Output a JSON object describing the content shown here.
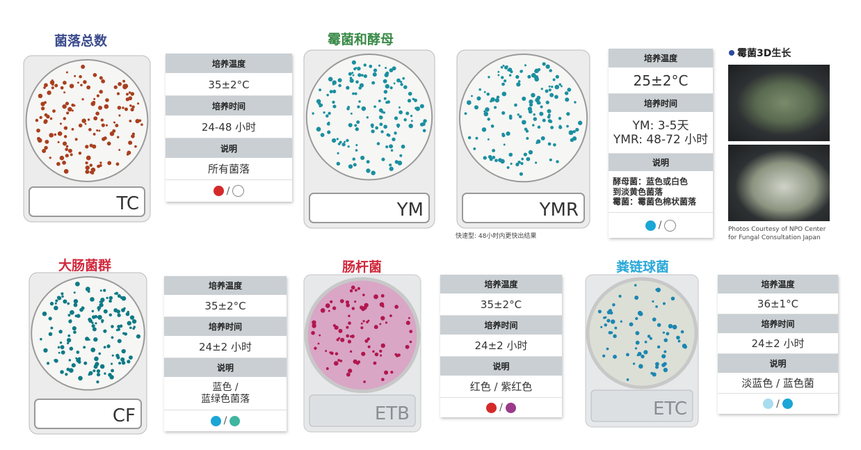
{
  "sections": {
    "tc": {
      "title": "菌落总数",
      "title_color": "#3b4b8c",
      "plate_label": "TC",
      "colony_color": "#a8401e"
    },
    "ym": {
      "title": "霉菌和酵母",
      "title_color": "#3a8a48",
      "plate_label": "YM",
      "colony_color": "#1b8fa0"
    },
    "ymr": {
      "plate_label": "YMR",
      "colony_color": "#1b8fa0",
      "caption": "快速型: 48小时内更快出结果"
    },
    "mold3d": {
      "title": "霉菌3D生长",
      "credit_line1": "Photos Courtesy of NPO Center",
      "credit_line2": "for Fungal Consultation Japan"
    },
    "cf": {
      "title": "大肠菌群",
      "title_color": "#d0283c",
      "plate_label": "CF",
      "colony_color": "#0f7a86"
    },
    "etb": {
      "title": "肠杆菌",
      "title_color": "#d0283c",
      "plate_label": "ETB",
      "colony_color": "#b0184e"
    },
    "etc": {
      "title": "粪链球菌",
      "title_color": "#2aa8d8",
      "plate_label": "ETC",
      "colony_color": "#1b86b0"
    }
  },
  "tables": {
    "tc": {
      "temp_h": "培养温度",
      "temp": "35±2°C",
      "time_h": "培养时间",
      "time": "24-48 小时",
      "desc_h": "说明",
      "desc": "所有菌落",
      "colors": [
        "#d42a2a",
        "#ffffff"
      ],
      "sep": "/"
    },
    "ym": {
      "temp_h": "培养温度",
      "temp": "25±2°C",
      "time_h": "培养时间",
      "time_1": "YM: 3-5天",
      "time_2": "YMR: 48-72 小时",
      "desc_h": "说明",
      "desc_1": "酵母菌：蓝色或白色",
      "desc_2": "到淡黄色菌落",
      "desc_3": "霉菌：霉菌色棉状菌落",
      "colors": [
        "#1aa6d6",
        "#ffffff"
      ],
      "sep": "/"
    },
    "cf": {
      "temp_h": "培养温度",
      "temp": "35±2°C",
      "time_h": "培养时间",
      "time": "24±2 小时",
      "desc_h": "说明",
      "desc_1": "蓝色 /",
      "desc_2": "蓝绿色菌落",
      "colors": [
        "#1aa6d6",
        "#3fb5a0"
      ],
      "sep": "/"
    },
    "etb": {
      "temp_h": "培养温度",
      "temp": "35±2°C",
      "time_h": "培养时间",
      "time": "24±2 小时",
      "desc_h": "说明",
      "desc": "红色 / 紫红色",
      "colors": [
        "#d42a2a",
        "#9a3a8a"
      ],
      "sep": "/"
    },
    "etc": {
      "temp_h": "培养温度",
      "temp": "36±1°C",
      "time_h": "培养时间",
      "time": "24±2 小时",
      "desc_h": "说明",
      "desc": "淡蓝色 / 蓝色菌",
      "colors": [
        "#a8dcef",
        "#1aa6d6"
      ],
      "sep": "/"
    }
  }
}
